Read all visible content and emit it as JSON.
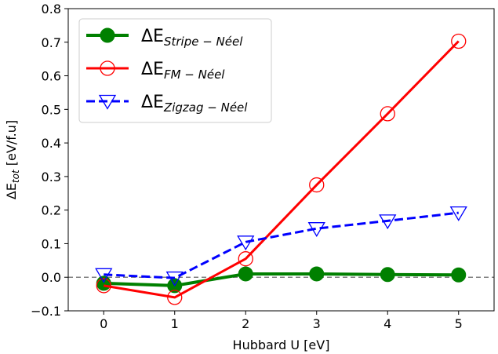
{
  "chart_data": {
    "type": "line",
    "title": "",
    "xlabel": "Hubbard U [eV]",
    "ylabel": {
      "prefix": "ΔE",
      "subscript": "tot",
      "suffix": " [eV/f.u]"
    },
    "xlim": [
      -0.5,
      5.5
    ],
    "ylim": [
      -0.1,
      0.8
    ],
    "xticks": [
      0,
      1,
      2,
      3,
      4,
      5
    ],
    "xtick_labels": [
      "0",
      "1",
      "2",
      "3",
      "4",
      "5"
    ],
    "yticks": [
      -0.1,
      0.0,
      0.1,
      0.2,
      0.3,
      0.4,
      0.5,
      0.6,
      0.7,
      0.8
    ],
    "ytick_labels": [
      "−0.1",
      "0.0",
      "0.1",
      "0.2",
      "0.3",
      "0.4",
      "0.5",
      "0.6",
      "0.7",
      "0.8"
    ],
    "grid": false,
    "legend_position": "upper-left",
    "reference_line": {
      "y": 0.0,
      "style": "dashed",
      "color": "#808080"
    },
    "x": [
      0,
      1,
      2,
      3,
      4,
      5
    ],
    "series": [
      {
        "name": "Stripe",
        "legend_main": "ΔE",
        "legend_sub": "Stripe − Néel",
        "color": "#008000",
        "line_style": "solid",
        "marker": "filled-circle",
        "values": [
          -0.018,
          -0.025,
          0.01,
          0.01,
          0.008,
          0.007
        ]
      },
      {
        "name": "FM",
        "legend_main": "ΔE",
        "legend_sub": "FM − Néel",
        "color": "#ff0000",
        "line_style": "solid",
        "marker": "open-circle",
        "values": [
          -0.025,
          -0.06,
          0.055,
          0.275,
          0.487,
          0.703
        ]
      },
      {
        "name": "Zigzag",
        "legend_main": "ΔE",
        "legend_sub": "Zigzag − Néel",
        "color": "#0000ff",
        "line_style": "dashed",
        "marker": "open-triangle-down",
        "values": [
          0.008,
          -0.002,
          0.105,
          0.145,
          0.168,
          0.192
        ]
      }
    ]
  }
}
